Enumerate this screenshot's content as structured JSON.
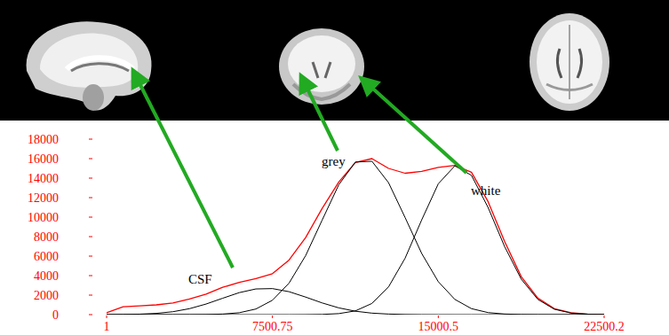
{
  "chart_data": {
    "type": "line",
    "x": [
      1,
      750,
      1500,
      2250,
      3000,
      3750,
      4500,
      5250,
      6000,
      6750,
      7500,
      8250,
      9000,
      9750,
      10500,
      11250,
      12000,
      12750,
      13500,
      14250,
      15000,
      15750,
      16500,
      17250,
      18000,
      18750,
      19500,
      20250,
      21000,
      21750,
      22500
    ],
    "series": [
      {
        "color": "#ff0000",
        "values": [
          200,
          800,
          900,
          1000,
          1200,
          1600,
          2100,
          2800,
          3300,
          3700,
          4200,
          5600,
          7900,
          10900,
          13600,
          15600,
          16000,
          15000,
          14500,
          14700,
          15100,
          15300,
          14600,
          11600,
          7500,
          3900,
          1700,
          600,
          200,
          50,
          0
        ]
      },
      {
        "name": "CSF",
        "color": "#000000",
        "values": [
          4,
          15,
          47,
          127,
          298,
          610,
          1085,
          1679,
          2255,
          2633,
          2670,
          2352,
          1801,
          1198,
          692,
          348,
          152,
          57,
          19,
          5,
          1,
          0,
          0,
          0,
          0,
          0,
          0,
          0,
          0,
          0,
          0
        ]
      },
      {
        "name": "grey",
        "color": "#000000",
        "values": [
          0,
          0,
          0,
          0,
          0,
          3,
          13,
          55,
          192,
          573,
          1473,
          3227,
          6046,
          9704,
          13322,
          15652,
          15730,
          13533,
          9955,
          6274,
          3380,
          1560,
          614,
          208,
          60,
          15,
          3,
          0,
          0,
          0,
          0
        ]
      },
      {
        "name": "white",
        "color": "#000000",
        "values": [
          0,
          0,
          0,
          0,
          0,
          0,
          0,
          0,
          0,
          0,
          0,
          0,
          5,
          23,
          104,
          381,
          1147,
          2840,
          5790,
          9717,
          13420,
          15262,
          14285,
          11003,
          6977,
          3643,
          1562,
          554,
          162,
          39,
          8
        ]
      }
    ],
    "xlim": [
      1,
      22500.2
    ],
    "xticks": [
      1,
      7500.75,
      15000.5,
      22500.2
    ],
    "ylim": [
      0,
      18000
    ],
    "yticks": [
      0,
      2000,
      4000,
      6000,
      8000,
      10000,
      12000,
      14000,
      16000,
      18000
    ],
    "grid": false
  }
}
